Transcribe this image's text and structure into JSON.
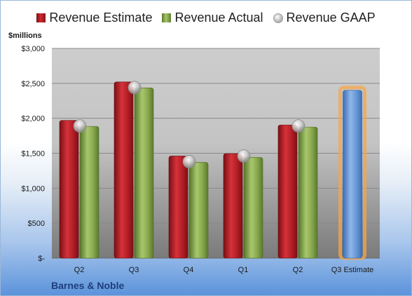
{
  "legend": {
    "estimate": "Revenue Estimate",
    "actual": "Revenue Actual",
    "gaap": "Revenue GAAP"
  },
  "unit_label": "$millions",
  "company": "Barnes & Noble",
  "colors": {
    "estimate": "#c0262d",
    "actual": "#9bbb59",
    "gaap": "#c8c8c8",
    "forecast": "#6f9fdc",
    "forecast_glow": "#f5a54a"
  },
  "chart_data": {
    "type": "bar",
    "categories": [
      "Q2",
      "Q3",
      "Q4",
      "Q1",
      "Q2",
      "Q3 Estimate"
    ],
    "series": [
      {
        "name": "Revenue Estimate",
        "values": [
          1970,
          2520,
          1460,
          1495,
          1905,
          2400
        ]
      },
      {
        "name": "Revenue Actual",
        "values": [
          1885,
          2435,
          1370,
          1440,
          1875,
          null
        ]
      },
      {
        "name": "Revenue GAAP",
        "values": [
          1890,
          2440,
          1380,
          1460,
          1890,
          null
        ]
      }
    ],
    "y_tick_labels": [
      "$-",
      "$500",
      "$1,000",
      "$1,500",
      "$2,000",
      "$2,500",
      "$3,000"
    ],
    "ylim": [
      0,
      3000
    ],
    "grid": true,
    "legend_position": "top"
  }
}
